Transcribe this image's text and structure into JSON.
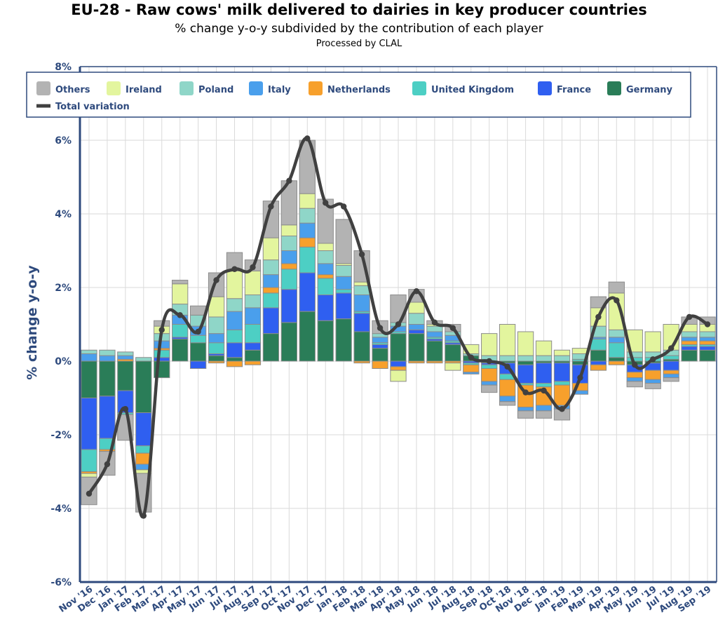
{
  "chart_data": {
    "type": "bar",
    "stacked": true,
    "title": "EU-28 - Raw cows' milk delivered to dairies in key producer countries",
    "subtitle": "% change y-o-y subdivided by the contribution of each player",
    "source": "Processed by CLAL",
    "ylabel": "% change y-o-y",
    "xlabel": "",
    "ylim": [
      -6,
      8
    ],
    "yticks": [
      -6,
      -4,
      -2,
      0,
      2,
      4,
      6,
      8
    ],
    "ytick_labels": [
      "-6%",
      "-4%",
      "-2%",
      "0%",
      "2%",
      "4%",
      "6%",
      "8%"
    ],
    "legend_position": "top",
    "categories": [
      "Nov '16",
      "Dec '16",
      "Jan '17",
      "Feb '17",
      "Mar '17",
      "Apr '17",
      "May '17",
      "Jun '17",
      "Jul '17",
      "Aug '17",
      "Sep '17",
      "Oct '17",
      "Nov '17",
      "Dec '17",
      "Jan '18",
      "Feb '18",
      "Mar '18",
      "Apr '18",
      "May '18",
      "Jun '18",
      "Jul '18",
      "Aug '18",
      "Sep '18",
      "Oct '18",
      "Nov '18",
      "Dec '18",
      "Jan '19",
      "Feb '19",
      "Mar '19",
      "Apr '19",
      "May '19",
      "Jun '19",
      "Jul '19",
      "Aug '19",
      "Sep '19"
    ],
    "series": [
      {
        "name": "Germany",
        "color": "#2a7d58",
        "values": [
          -1.0,
          -0.95,
          -0.8,
          -1.4,
          -0.45,
          0.6,
          0.5,
          0.15,
          0.1,
          0.3,
          0.75,
          1.05,
          1.35,
          1.1,
          1.15,
          0.8,
          0.35,
          0.75,
          0.75,
          0.55,
          0.45,
          0.15,
          -0.05,
          -0.05,
          -0.1,
          -0.05,
          -0.05,
          -0.1,
          0.3,
          0.1,
          -0.1,
          -0.05,
          0.05,
          0.3,
          0.3
        ]
      },
      {
        "name": "France",
        "color": "#2f5ff0",
        "values": [
          -1.4,
          -1.15,
          -0.6,
          -0.9,
          0.1,
          0.05,
          -0.2,
          0.05,
          0.4,
          0.2,
          0.7,
          0.9,
          1.05,
          0.7,
          0.7,
          0.5,
          0.1,
          -0.15,
          0.1,
          0.05,
          0.05,
          -0.05,
          -0.05,
          -0.3,
          -0.5,
          -0.55,
          -0.5,
          -0.5,
          -0.1,
          0.0,
          -0.2,
          -0.2,
          -0.25,
          0.1,
          0.1
        ]
      },
      {
        "name": "United Kingdom",
        "color": "#4dcfc4",
        "values": [
          -0.6,
          -0.3,
          -0.05,
          -0.2,
          0.2,
          0.35,
          0.2,
          0.3,
          0.35,
          0.5,
          0.4,
          0.55,
          0.7,
          0.45,
          0.1,
          0.05,
          0.05,
          0.05,
          0.0,
          0.05,
          0.05,
          -0.05,
          -0.1,
          -0.15,
          -0.05,
          -0.1,
          -0.1,
          0.05,
          0.3,
          0.4,
          0.1,
          0.1,
          0.1,
          0.05,
          0.05
        ]
      },
      {
        "name": "Netherlands",
        "color": "#f7a02c",
        "values": [
          -0.05,
          -0.05,
          0.05,
          -0.3,
          0.05,
          0.0,
          0.0,
          -0.05,
          -0.15,
          -0.1,
          0.15,
          0.15,
          0.25,
          0.1,
          0.0,
          -0.05,
          -0.2,
          -0.1,
          -0.05,
          -0.05,
          -0.05,
          -0.2,
          -0.35,
          -0.45,
          -0.6,
          -0.5,
          -0.55,
          -0.2,
          -0.15,
          -0.1,
          -0.15,
          -0.25,
          -0.1,
          0.1,
          0.1
        ]
      },
      {
        "name": "Italy",
        "color": "#4a9fec",
        "values": [
          0.2,
          0.15,
          0.1,
          -0.15,
          0.2,
          0.25,
          0.25,
          0.25,
          0.5,
          0.45,
          0.35,
          0.35,
          0.4,
          0.3,
          0.35,
          0.45,
          0.15,
          0.15,
          0.15,
          0.15,
          0.15,
          -0.05,
          -0.1,
          -0.15,
          -0.1,
          -0.15,
          -0.1,
          -0.1,
          0.05,
          0.15,
          -0.1,
          -0.1,
          -0.1,
          0.1,
          0.1
        ]
      },
      {
        "name": "Poland",
        "color": "#8fd6c8",
        "values": [
          0.1,
          0.15,
          0.1,
          0.1,
          0.2,
          0.3,
          0.3,
          0.45,
          0.35,
          0.35,
          0.4,
          0.4,
          0.4,
          0.35,
          0.3,
          0.25,
          0.1,
          0.1,
          0.3,
          0.15,
          0.1,
          0.05,
          0.15,
          0.15,
          0.15,
          0.15,
          0.15,
          0.15,
          0.3,
          0.2,
          0.15,
          0.15,
          0.15,
          0.15,
          0.15
        ]
      },
      {
        "name": "Ireland",
        "color": "#e3f59e",
        "values": [
          -0.1,
          0.0,
          0.0,
          -0.1,
          0.2,
          0.55,
          0.0,
          0.55,
          0.75,
          0.65,
          0.6,
          0.3,
          0.4,
          0.2,
          0.05,
          0.1,
          0.0,
          -0.3,
          0.3,
          0.05,
          -0.2,
          0.25,
          0.6,
          0.85,
          0.65,
          0.4,
          0.15,
          0.15,
          0.5,
          1.0,
          0.6,
          0.55,
          0.7,
          0.2,
          0.2
        ]
      },
      {
        "name": "Others",
        "color": "#b3b3b3",
        "values": [
          -0.75,
          -0.65,
          -0.7,
          -1.05,
          0.15,
          0.1,
          0.25,
          0.65,
          0.5,
          0.3,
          1.0,
          1.2,
          1.45,
          1.2,
          1.2,
          0.85,
          0.35,
          0.75,
          0.35,
          0.1,
          0.2,
          0.0,
          -0.2,
          -0.1,
          -0.2,
          -0.2,
          -0.3,
          0.0,
          0.3,
          0.3,
          -0.15,
          -0.15,
          -0.1,
          0.2,
          0.2
        ]
      }
    ],
    "line": {
      "name": "Total variation",
      "color": "#404040",
      "values": [
        -3.6,
        -2.8,
        -1.3,
        -4.2,
        0.85,
        1.25,
        0.8,
        2.2,
        2.5,
        2.55,
        4.2,
        4.9,
        6.05,
        4.3,
        4.2,
        2.9,
        0.9,
        1.0,
        1.9,
        1.05,
        0.9,
        0.1,
        0.0,
        -0.15,
        -0.85,
        -0.8,
        -1.3,
        -0.45,
        1.2,
        1.65,
        -0.1,
        0.05,
        0.35,
        1.2,
        1.0
      ]
    }
  },
  "legend": {
    "row1": [
      "Others",
      "Ireland",
      "Poland",
      "Italy",
      "Netherlands",
      "United Kingdom",
      "France",
      "Germany"
    ],
    "row2": [
      "Total variation"
    ]
  }
}
